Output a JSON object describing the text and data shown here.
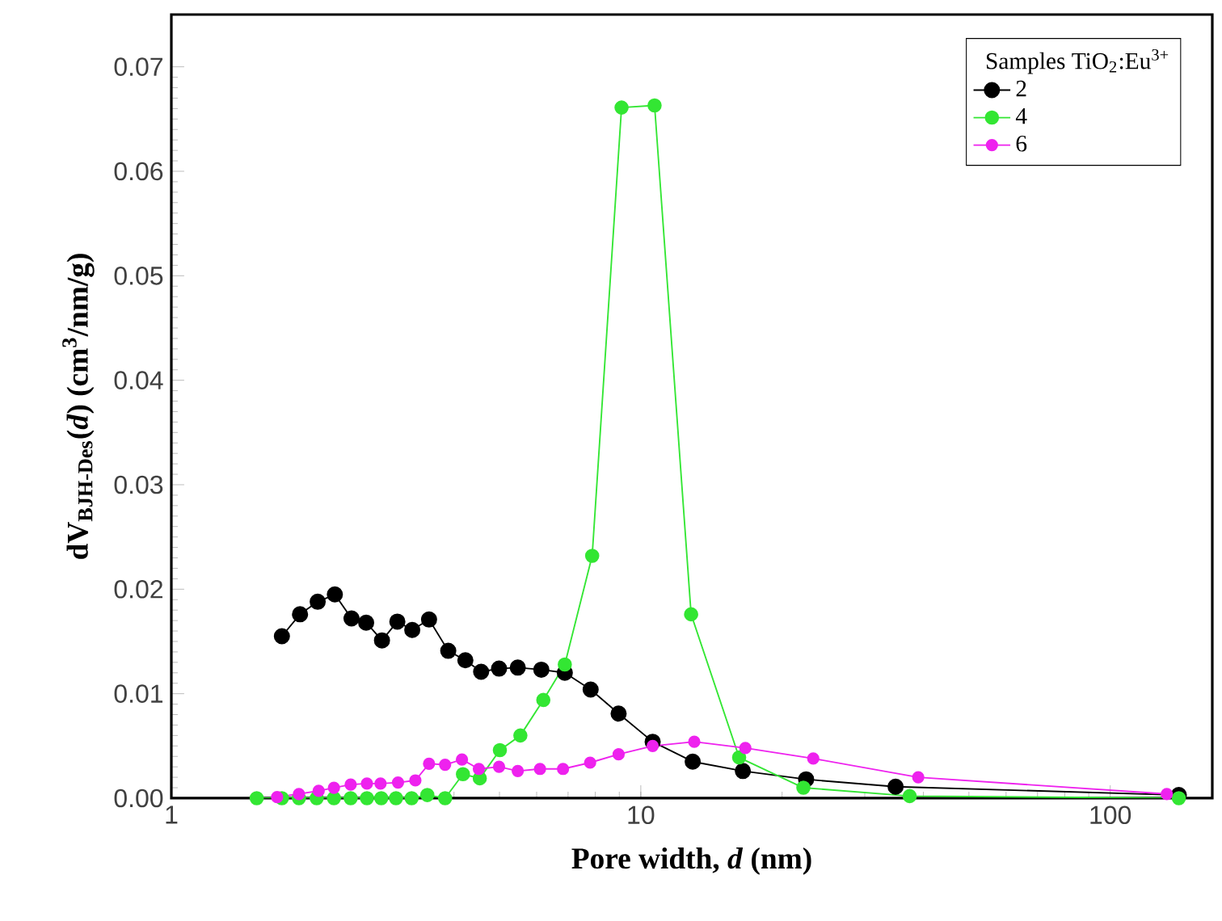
{
  "chart_data": {
    "type": "line",
    "xlabel": "Pore width, *d* (nm)",
    "ylabel": "dV$_{BJH-Des}$(*d*) (cm$^{3}$/nm/g)",
    "legend_title": "Samples TiO$_{2}$:Eu$^{3+}$",
    "log": "x",
    "legend": "top right",
    "marker": "circle",
    "grid": false,
    "xlim": [
      1,
      165
    ],
    "ylim": [
      0,
      0.075
    ],
    "xticks": [
      1,
      10,
      100
    ],
    "yticks": [
      {
        "value": 0,
        "label": "0.00"
      },
      {
        "value": 0.01,
        "label": "0.01"
      },
      {
        "value": 0.02,
        "label": "0.02"
      },
      {
        "value": 0.03,
        "label": "0.03"
      },
      {
        "value": 0.04,
        "label": "0.04"
      },
      {
        "value": 0.05,
        "label": "0.05"
      },
      {
        "value": 0.06,
        "label": "0.06"
      },
      {
        "value": 0.07,
        "label": "0.07"
      }
    ],
    "series": [
      {
        "name": "2",
        "color": "#000000",
        "x": [
          1.72,
          1.88,
          2.05,
          2.23,
          2.42,
          2.6,
          2.81,
          3.03,
          3.26,
          3.54,
          3.89,
          4.23,
          4.57,
          4.99,
          5.47,
          6.14,
          6.89,
          7.82,
          8.97,
          10.6,
          12.9,
          16.5,
          22.5,
          34.9,
          140
        ],
        "values": [
          0.0155,
          0.0176,
          0.0188,
          0.0195,
          0.0172,
          0.0168,
          0.0151,
          0.0169,
          0.0161,
          0.0171,
          0.0141,
          0.0132,
          0.0121,
          0.0124,
          0.0125,
          0.0123,
          0.012,
          0.0104,
          0.0081,
          0.0054,
          0.0035,
          0.0026,
          0.0018,
          0.0011,
          0.0003
        ]
      },
      {
        "name": "4",
        "color": "#33e633",
        "x": [
          1.52,
          1.72,
          1.87,
          2.04,
          2.22,
          2.41,
          2.61,
          2.8,
          3.01,
          3.25,
          3.51,
          3.83,
          4.18,
          4.54,
          5.01,
          5.54,
          6.2,
          6.89,
          7.88,
          9.1,
          10.7,
          12.8,
          16.2,
          22.2,
          37.4,
          140
        ],
        "values": [
          0,
          0,
          0,
          0,
          0,
          0,
          0,
          0,
          0,
          0,
          0.0003,
          0,
          0.0023,
          0.0019,
          0.0046,
          0.006,
          0.0094,
          0.0128,
          0.0232,
          0.0661,
          0.0663,
          0.0176,
          0.0039,
          0.001,
          0.0002,
          0
        ]
      },
      {
        "name": "6",
        "color": "#ee22ee",
        "x": [
          1.68,
          1.87,
          2.06,
          2.22,
          2.41,
          2.61,
          2.79,
          3.04,
          3.31,
          3.54,
          3.83,
          4.16,
          4.52,
          4.99,
          5.47,
          6.1,
          6.83,
          7.8,
          8.97,
          10.6,
          13.0,
          16.7,
          23.3,
          39.0,
          132
        ],
        "values": [
          0.0001,
          0.0004,
          0.0007,
          0.001,
          0.0013,
          0.0014,
          0.0014,
          0.0015,
          0.0017,
          0.0033,
          0.0032,
          0.0037,
          0.0028,
          0.003,
          0.0026,
          0.0028,
          0.0028,
          0.0034,
          0.0042,
          0.005,
          0.0054,
          0.0048,
          0.0038,
          0.002,
          0.0004
        ]
      }
    ]
  }
}
